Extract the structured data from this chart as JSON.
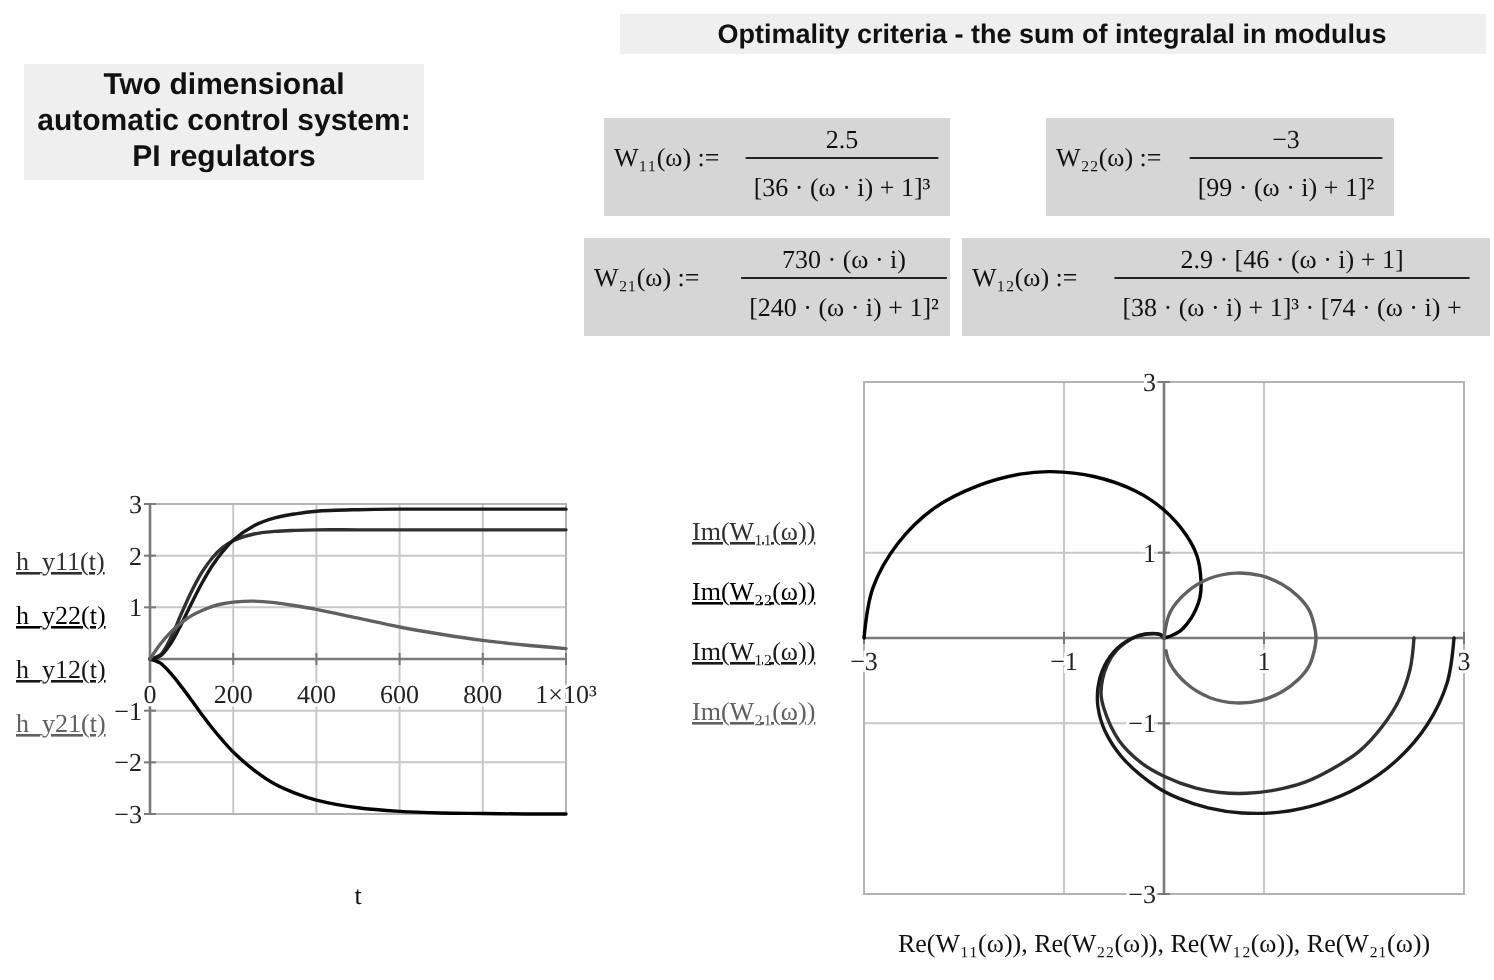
{
  "chart_data": [
    {
      "type": "other",
      "title": "Two dimensional\nautomatic control system:\nPI regulators"
    },
    {
      "type": "other",
      "title": "Optimality criteria - the sum of integralal in modulus",
      "annotations": [
        "W₁₁(ω) :=",
        "2.5",
        "[36 · (ω · i) + 1]³",
        "W₂₂(ω) :=",
        "−3",
        "[99 · (ω · i) + 1]²",
        "W₂₁(ω) :=",
        "730 · (ω · i)",
        "[240 · (ω · i) + 1]²",
        "W₁₂(ω) :=",
        "2.9 · [46 · (ω · i) + 1]",
        "[38 · (ω · i) + 1]³ · [74 · (ω · i) +"
      ]
    },
    {
      "type": "line",
      "xlabel": "t",
      "x": [
        0,
        25,
        50,
        75,
        100,
        125,
        150,
        175,
        200,
        250,
        300,
        350,
        400,
        500,
        600,
        700,
        800,
        900,
        1000
      ],
      "series": [
        {
          "name": "h_y11(t)",
          "color": "#303030",
          "values": [
            0,
            0.08,
            0.41,
            0.87,
            1.31,
            1.68,
            1.96,
            2.16,
            2.29,
            2.42,
            2.47,
            2.49,
            2.5,
            2.5,
            2.5,
            2.5,
            2.5,
            2.5,
            2.5
          ]
        },
        {
          "name": "h_y22(t)",
          "color": "#000000",
          "values": [
            0,
            -0.08,
            -0.28,
            -0.53,
            -0.8,
            -1.08,
            -1.34,
            -1.58,
            -1.8,
            -2.15,
            -2.42,
            -2.6,
            -2.73,
            -2.88,
            -2.95,
            -2.98,
            -2.99,
            -3,
            -3
          ]
        },
        {
          "name": "h_y12(t)",
          "color": "#181818",
          "values": [
            0,
            0.06,
            0.3,
            0.67,
            1.08,
            1.47,
            1.81,
            2.08,
            2.3,
            2.58,
            2.73,
            2.81,
            2.86,
            2.89,
            2.9,
            2.9,
            2.9,
            2.9,
            2.9
          ]
        },
        {
          "name": "h_y21(t)",
          "color": "#606060",
          "values": [
            0,
            0.29,
            0.52,
            0.7,
            0.84,
            0.94,
            1.02,
            1.07,
            1.1,
            1.12,
            1.09,
            1.03,
            0.96,
            0.79,
            0.62,
            0.48,
            0.36,
            0.27,
            0.2
          ]
        }
      ],
      "xlim": [
        0,
        1000
      ],
      "ylim": [
        -3,
        3
      ],
      "xticks": [
        0,
        200,
        400,
        600,
        800,
        {
          "value": 1000,
          "label": "1×10³"
        }
      ],
      "yticks": [
        -3,
        -2,
        -1,
        1,
        2,
        3
      ],
      "grid": true,
      "legend": "left"
    },
    {
      "type": "line",
      "xlabel": "Re(W₁₁(ω)), Re(W₂₂(ω)), Re(W₁₂(ω)), Re(W₂₁(ω))",
      "series": [
        {
          "name": "Im(W₁₁(ω))",
          "color": "#303030",
          "x": [
            2.5,
            2.46,
            2.35,
            2.18,
            1.96,
            1.69,
            1.41,
            1.12,
            0.83,
            0.56,
            0.32,
            0,
            -0.23,
            -0.45,
            -0.6,
            -0.63,
            -0.57,
            -0.47,
            -0.31,
            -0.22,
            -0.12,
            -0.07,
            -0.02,
            -0.01,
            0
          ],
          "values": [
            0,
            -0.37,
            -0.73,
            -1.04,
            -1.32,
            -1.53,
            -1.69,
            -1.78,
            -1.82,
            -1.81,
            -1.76,
            -1.62,
            -1.46,
            -1.2,
            -0.83,
            -0.63,
            -0.32,
            -0.14,
            0,
            0.04,
            0.05,
            0.05,
            0.03,
            0.01,
            0
          ]
        },
        {
          "name": "Im(W₂₂(ω))",
          "color": "#000000",
          "x": [
            -3,
            -2.91,
            -2.66,
            -2.3,
            -1.87,
            -1.44,
            -1.13,
            -0.69,
            -0.28,
            0,
            0.22,
            0.33,
            0.37,
            0.36,
            0.3,
            0.24,
            0.16,
            0.08,
            0.03,
            0
          ],
          "values": [
            0,
            0.59,
            1.11,
            1.52,
            1.78,
            1.92,
            1.95,
            1.89,
            1.72,
            1.5,
            1.21,
            0.96,
            0.67,
            0.48,
            0.29,
            0.18,
            0.08,
            0.03,
            0.01,
            0
          ]
        },
        {
          "name": "Im(W₁₂(ω))",
          "color": "#181818",
          "x": [
            2.9,
            2.83,
            2.63,
            2.33,
            1.96,
            1.56,
            1.16,
            0.78,
            0.44,
            0.15,
            -0.08,
            -0.41,
            -0.59,
            -0.66,
            -0.66,
            -0.62,
            -0.5,
            -0.33,
            -0.16,
            -0.04,
            -0.01,
            0
          ],
          "values": [
            0,
            -0.53,
            -1.02,
            -1.43,
            -1.74,
            -1.94,
            -2.04,
            -2.05,
            -1.99,
            -1.88,
            -1.74,
            -1.41,
            -1.09,
            -0.81,
            -0.58,
            -0.39,
            -0.16,
            -0.01,
            0.05,
            0.04,
            0.01,
            0
          ]
        },
        {
          "name": "Im(W₂₁(ω))",
          "color": "#606060",
          "x": [
            0,
            0.06,
            0.23,
            0.46,
            0.72,
            0.97,
            1.18,
            1.34,
            1.45,
            1.5,
            1.52,
            1.5,
            1.45,
            1.34,
            1.18,
            0.97,
            0.72,
            0.46,
            0.23,
            0.06,
            0.02
          ],
          "values": [
            0,
            0.3,
            0.54,
            0.7,
            0.76,
            0.73,
            0.63,
            0.49,
            0.33,
            0.16,
            0,
            -0.16,
            -0.33,
            -0.49,
            -0.63,
            -0.73,
            -0.76,
            -0.7,
            -0.54,
            -0.3,
            -0.15
          ]
        }
      ],
      "xlim": [
        -3,
        3
      ],
      "ylim": [
        -3,
        3
      ],
      "xticks": [
        -3,
        -1,
        1,
        3
      ],
      "yticks": [
        -3,
        -1,
        1,
        3
      ],
      "grid": true,
      "legend": "left"
    }
  ]
}
